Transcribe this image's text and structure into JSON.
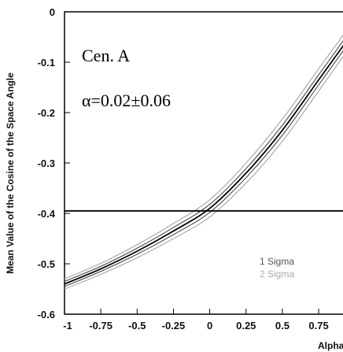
{
  "chart_data": {
    "type": "line",
    "xlabel": "Alpha",
    "ylabel": "Mean Value of the Cosine of the Space Angle",
    "xlim": [
      -1,
      0.95
    ],
    "ylim": [
      -0.6,
      0
    ],
    "x_ticks": [
      "-1",
      "-0.75",
      "-0.5",
      "-0.25",
      "0",
      "0.25",
      "0.5",
      "0.75"
    ],
    "y_ticks": [
      "0",
      "-0.1",
      "-0.2",
      "-0.3",
      "-0.4",
      "-0.5",
      "-0.6"
    ],
    "annotations": [
      "Cen. A",
      "α=0.02±0.06"
    ],
    "legend": [
      {
        "label": "1 Sigma",
        "color": "#555555"
      },
      {
        "label": "2 Sigma",
        "color": "#aaaaaa"
      }
    ],
    "legend_position": "bottom-right",
    "horizontal_line": {
      "y": -0.395
    },
    "series": [
      {
        "role": "central",
        "color": "#000000",
        "x": [
          -1,
          -0.75,
          -0.5,
          -0.25,
          0,
          0.25,
          0.5,
          0.75,
          0.95
        ],
        "y": [
          -0.54,
          -0.51,
          -0.475,
          -0.435,
          -0.39,
          -0.32,
          -0.235,
          -0.135,
          -0.055
        ]
      },
      {
        "role": "1-sigma-upper",
        "color": "#555555",
        "x": [
          -1,
          -0.75,
          -0.5,
          -0.25,
          0,
          0.25,
          0.5,
          0.75,
          0.95
        ],
        "y": [
          -0.535,
          -0.505,
          -0.469,
          -0.428,
          -0.382,
          -0.311,
          -0.225,
          -0.125,
          -0.045
        ]
      },
      {
        "role": "1-sigma-lower",
        "color": "#555555",
        "x": [
          -1,
          -0.75,
          -0.5,
          -0.25,
          0,
          0.25,
          0.5,
          0.75,
          0.95
        ],
        "y": [
          -0.545,
          -0.515,
          -0.481,
          -0.442,
          -0.398,
          -0.329,
          -0.245,
          -0.145,
          -0.065
        ]
      },
      {
        "role": "2-sigma-upper",
        "color": "#aaaaaa",
        "x": [
          -1,
          -0.75,
          -0.5,
          -0.25,
          0,
          0.25,
          0.5,
          0.75,
          0.95
        ],
        "y": [
          -0.53,
          -0.499,
          -0.462,
          -0.42,
          -0.373,
          -0.3,
          -0.213,
          -0.113,
          -0.034
        ]
      },
      {
        "role": "2-sigma-lower",
        "color": "#aaaaaa",
        "x": [
          -1,
          -0.75,
          -0.5,
          -0.25,
          0,
          0.25,
          0.5,
          0.75,
          0.95
        ],
        "y": [
          -0.55,
          -0.521,
          -0.488,
          -0.45,
          -0.407,
          -0.34,
          -0.257,
          -0.157,
          -0.076
        ]
      }
    ]
  }
}
